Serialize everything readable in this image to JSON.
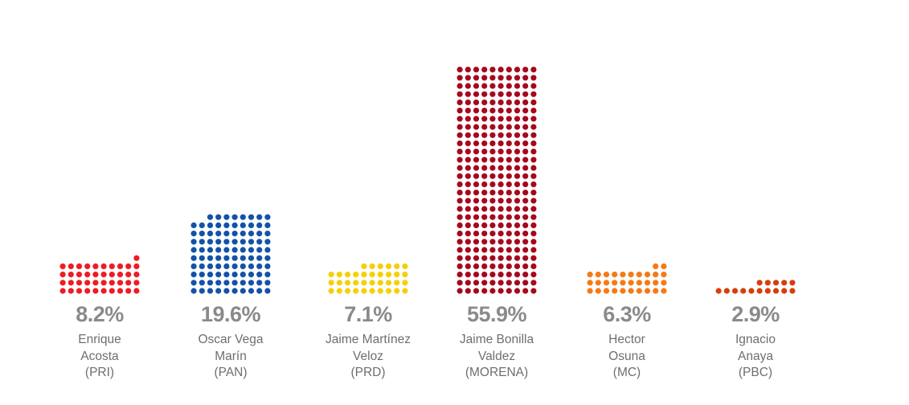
{
  "chart_data": {
    "type": "bar",
    "style": "dot-grid",
    "series": [
      {
        "value": 8.2,
        "percent_label": "8.2%",
        "name_lines": [
          "Enrique",
          "Acosta"
        ],
        "party": "(PRI)",
        "color": "#ee1c25"
      },
      {
        "value": 19.6,
        "percent_label": "19.6%",
        "name_lines": [
          "Oscar Vega",
          "Marín"
        ],
        "party": "(PAN)",
        "color": "#1452a8"
      },
      {
        "value": 7.1,
        "percent_label": "7.1%",
        "name_lines": [
          "Jaime Martínez",
          "Veloz"
        ],
        "party": "(PRD)",
        "color": "#f6cf0c"
      },
      {
        "value": 55.9,
        "percent_label": "55.9%",
        "name_lines": [
          "Jaime Bonilla",
          "Valdez"
        ],
        "party": "(MORENA)",
        "color": "#a5091d"
      },
      {
        "value": 6.3,
        "percent_label": "6.3%",
        "name_lines": [
          "Hector",
          "Osuna"
        ],
        "party": "(MC)",
        "color": "#f47a17"
      },
      {
        "value": 2.9,
        "percent_label": "2.9%",
        "name_lines": [
          "Ignacio",
          "Anaya"
        ],
        "party": "(PBC)",
        "color": "#d63e0c"
      }
    ]
  }
}
